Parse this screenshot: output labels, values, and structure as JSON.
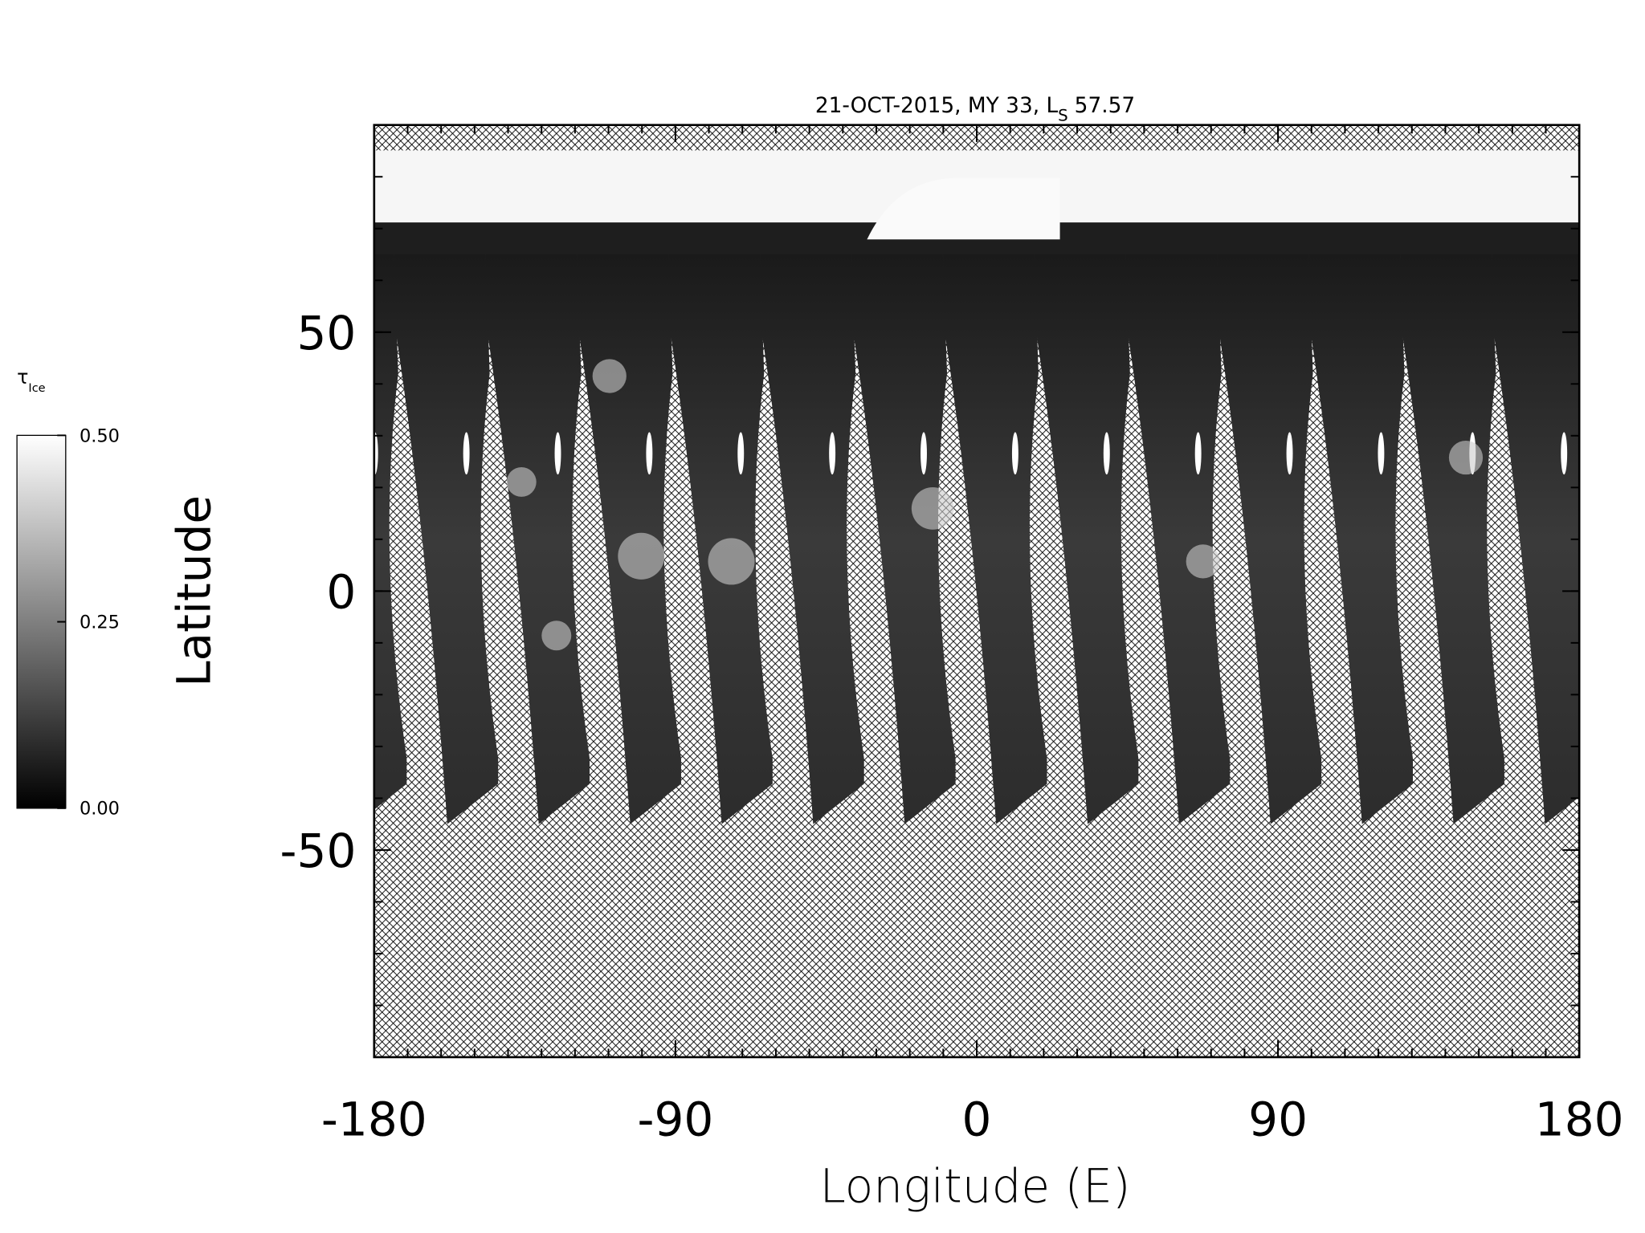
{
  "chart_data": {
    "type": "map",
    "title": {
      "main": "21-OCT-2015, MY 33,  L",
      "subscript": "S",
      "rest": "57.57"
    },
    "xlabel": "Longitude (E)",
    "ylabel": "Latitude",
    "xlim": [
      -180,
      180
    ],
    "xticks": [
      -180,
      -90,
      0,
      90,
      180
    ],
    "ylim": [
      -90,
      90
    ],
    "yticks": [
      -50,
      0,
      50
    ],
    "colorbar": {
      "label": "τ",
      "label_subscript": "Ice",
      "lim": [
        0,
        0.5
      ],
      "ticks": [
        {
          "value": 0,
          "label": "0.00"
        },
        {
          "value": 0.25,
          "label": "0.25"
        },
        {
          "value": 0.5,
          "label": "0.50"
        }
      ],
      "colors": [
        "#000000",
        "#ffffff"
      ]
    }
  }
}
